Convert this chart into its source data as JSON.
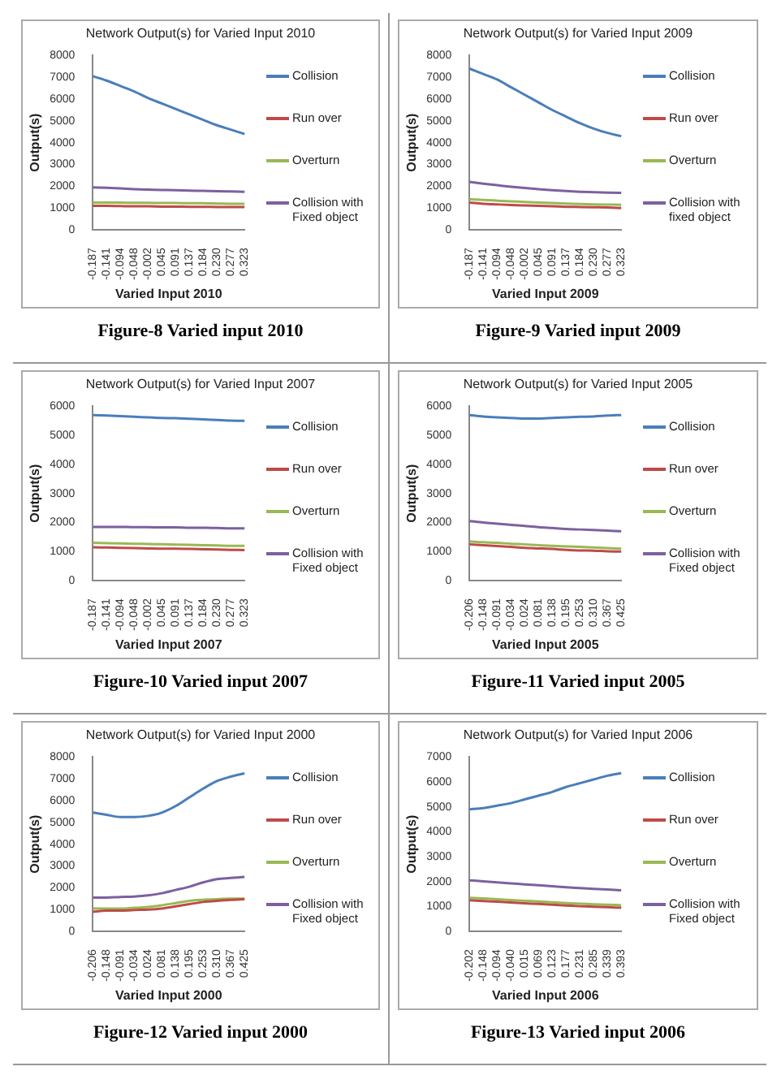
{
  "chart_data": [
    {
      "type": "line",
      "title": "Network Output(s) for Varied Input 2010",
      "xlabel": "Varied Input 2010",
      "ylabel": "Output(s)",
      "categories": [
        "-0.187",
        "-0.141",
        "-0.094",
        "-0.048",
        "-0.002",
        "0.045",
        "0.091",
        "0.137",
        "0.184",
        "0.230",
        "0.277",
        "0.323"
      ],
      "ylim": [
        0,
        8000
      ],
      "yticks": [
        0,
        1000,
        2000,
        3000,
        4000,
        5000,
        6000,
        7000,
        8000
      ],
      "legend": "right",
      "marker": "none",
      "annotations": [
        "Figure-8 Varied input 2010"
      ],
      "series": [
        {
          "name": "Collision",
          "color": "#4a7ebb",
          "values": [
            7050,
            6850,
            6600,
            6350,
            6050,
            5800,
            5550,
            5300,
            5050,
            4800,
            4600,
            4400
          ]
        },
        {
          "name": "Run over",
          "color": "#be4b48",
          "values": [
            1100,
            1100,
            1090,
            1080,
            1080,
            1070,
            1070,
            1060,
            1060,
            1050,
            1050,
            1050
          ]
        },
        {
          "name": "Overturn",
          "color": "#98b954",
          "values": [
            1250,
            1250,
            1250,
            1240,
            1240,
            1230,
            1230,
            1220,
            1220,
            1210,
            1200,
            1200
          ]
        },
        {
          "name": "Collision with Fixed object",
          "color": "#7d60a0",
          "values": [
            1950,
            1930,
            1900,
            1870,
            1850,
            1830,
            1820,
            1800,
            1790,
            1770,
            1760,
            1750
          ]
        }
      ]
    },
    {
      "type": "line",
      "title": "Network Output(s) for Varied Input 2009",
      "xlabel": "Varied Input 2009",
      "ylabel": "Output(s)",
      "categories": [
        "-0.187",
        "-0.141",
        "-0.094",
        "-0.048",
        "-0.002",
        "0.045",
        "0.091",
        "0.137",
        "0.184",
        "0.230",
        "0.277",
        "0.323"
      ],
      "ylim": [
        0,
        8000
      ],
      "yticks": [
        0,
        1000,
        2000,
        3000,
        4000,
        5000,
        6000,
        7000,
        8000
      ],
      "legend": "right",
      "marker": "none",
      "annotations": [
        "Figure-9 Varied input 2009"
      ],
      "series": [
        {
          "name": "Collision",
          "color": "#4a7ebb",
          "values": [
            7400,
            7150,
            6900,
            6550,
            6200,
            5850,
            5500,
            5200,
            4900,
            4650,
            4450,
            4300
          ]
        },
        {
          "name": "Run over",
          "color": "#be4b48",
          "values": [
            1250,
            1200,
            1170,
            1140,
            1120,
            1100,
            1080,
            1060,
            1050,
            1040,
            1030,
            1000
          ]
        },
        {
          "name": "Overturn",
          "color": "#98b954",
          "values": [
            1400,
            1370,
            1340,
            1310,
            1280,
            1250,
            1230,
            1210,
            1190,
            1170,
            1160,
            1150
          ]
        },
        {
          "name": "Collision with fixed object",
          "color": "#7d60a0",
          "values": [
            2200,
            2120,
            2050,
            1980,
            1920,
            1870,
            1820,
            1780,
            1750,
            1730,
            1710,
            1700
          ]
        }
      ]
    },
    {
      "type": "line",
      "title": "Network Output(s) for Varied Input 2007",
      "xlabel": "Varied Input 2007",
      "ylabel": "Output(s)",
      "categories": [
        "-0.187",
        "-0.141",
        "-0.094",
        "-0.048",
        "-0.002",
        "0.045",
        "0.091",
        "0.137",
        "0.184",
        "0.230",
        "0.277",
        "0.323"
      ],
      "ylim": [
        0,
        6000
      ],
      "yticks": [
        0,
        1000,
        2000,
        3000,
        4000,
        5000,
        6000
      ],
      "legend": "right",
      "marker": "none",
      "annotations": [
        "Figure-10 Varied input 2007"
      ],
      "series": [
        {
          "name": "Collision",
          "color": "#4a7ebb",
          "values": [
            5700,
            5680,
            5660,
            5640,
            5620,
            5600,
            5590,
            5570,
            5550,
            5530,
            5510,
            5500
          ]
        },
        {
          "name": "Run over",
          "color": "#be4b48",
          "values": [
            1150,
            1140,
            1130,
            1120,
            1110,
            1100,
            1100,
            1090,
            1080,
            1070,
            1060,
            1050
          ]
        },
        {
          "name": "Overturn",
          "color": "#98b954",
          "values": [
            1300,
            1290,
            1280,
            1270,
            1260,
            1250,
            1240,
            1230,
            1220,
            1210,
            1200,
            1200
          ]
        },
        {
          "name": "Collision with Fixed object",
          "color": "#7d60a0",
          "values": [
            1850,
            1850,
            1850,
            1840,
            1840,
            1830,
            1830,
            1820,
            1820,
            1810,
            1800,
            1800
          ]
        }
      ]
    },
    {
      "type": "line",
      "title": "Network Output(s) for Varied Input 2005",
      "xlabel": "Varied Input 2005",
      "ylabel": "Output(s)",
      "categories": [
        "-0.206",
        "-0.148",
        "-0.091",
        "-0.034",
        "0.024",
        "0.081",
        "0.138",
        "0.195",
        "0.253",
        "0.310",
        "0.367",
        "0.425"
      ],
      "ylim": [
        0,
        6000
      ],
      "yticks": [
        0,
        1000,
        2000,
        3000,
        4000,
        5000,
        6000
      ],
      "legend": "right",
      "marker": "none",
      "annotations": [
        "Figure-11 Varied input 2005"
      ],
      "series": [
        {
          "name": "Collision",
          "color": "#4a7ebb",
          "values": [
            5700,
            5650,
            5620,
            5600,
            5580,
            5580,
            5600,
            5620,
            5640,
            5650,
            5680,
            5700
          ]
        },
        {
          "name": "Run over",
          "color": "#be4b48",
          "values": [
            1250,
            1220,
            1190,
            1160,
            1130,
            1110,
            1090,
            1060,
            1040,
            1030,
            1010,
            1000
          ]
        },
        {
          "name": "Overturn",
          "color": "#98b954",
          "values": [
            1350,
            1320,
            1300,
            1270,
            1250,
            1220,
            1200,
            1180,
            1160,
            1140,
            1120,
            1100
          ]
        },
        {
          "name": "Collision with Fixed object",
          "color": "#7d60a0",
          "values": [
            2050,
            2000,
            1960,
            1920,
            1880,
            1840,
            1810,
            1780,
            1760,
            1740,
            1720,
            1700
          ]
        }
      ]
    },
    {
      "type": "line",
      "title": "Network Output(s) for Varied Input 2000",
      "xlabel": "Varied Input 2000",
      "ylabel": "Output(s)",
      "categories": [
        "-0.206",
        "-0.148",
        "-0.091",
        "-0.034",
        "0.024",
        "0.081",
        "0.138",
        "0.195",
        "0.253",
        "0.310",
        "0.367",
        "0.425"
      ],
      "ylim": [
        0,
        8000
      ],
      "yticks": [
        0,
        1000,
        2000,
        3000,
        4000,
        5000,
        6000,
        7000,
        8000
      ],
      "legend": "right",
      "marker": "none",
      "annotations": [
        "Figure-12 Varied input 2000"
      ],
      "series": [
        {
          "name": "Collision",
          "color": "#4a7ebb",
          "values": [
            5450,
            5350,
            5250,
            5250,
            5300,
            5450,
            5750,
            6150,
            6550,
            6900,
            7100,
            7250
          ]
        },
        {
          "name": "Run over",
          "color": "#be4b48",
          "values": [
            900,
            950,
            950,
            980,
            1000,
            1050,
            1150,
            1250,
            1350,
            1400,
            1450,
            1480
          ]
        },
        {
          "name": "Overturn",
          "color": "#98b954",
          "values": [
            1050,
            1050,
            1050,
            1080,
            1120,
            1200,
            1300,
            1400,
            1450,
            1480,
            1500,
            1500
          ]
        },
        {
          "name": "Collision with Fixed object",
          "color": "#7d60a0",
          "values": [
            1550,
            1550,
            1580,
            1600,
            1650,
            1750,
            1900,
            2050,
            2250,
            2400,
            2450,
            2500
          ]
        }
      ]
    },
    {
      "type": "line",
      "title": "Network Output(s) for Varied Input 2006",
      "xlabel": "Varied Input 2006",
      "ylabel": "Output(s)",
      "categories": [
        "-0.202",
        "-0.148",
        "-0.094",
        "-0.040",
        "0.015",
        "0.069",
        "0.123",
        "0.177",
        "0.231",
        "0.285",
        "0.339",
        "0.393"
      ],
      "ylim": [
        0,
        7000
      ],
      "yticks": [
        0,
        1000,
        2000,
        3000,
        4000,
        5000,
        6000,
        7000
      ],
      "legend": "right",
      "marker": "none",
      "annotations": [
        "Figure-13 Varied input 2006"
      ],
      "series": [
        {
          "name": "Collision",
          "color": "#4a7ebb",
          "values": [
            4900,
            4950,
            5050,
            5150,
            5300,
            5450,
            5600,
            5800,
            5950,
            6100,
            6250,
            6350
          ]
        },
        {
          "name": "Run over",
          "color": "#be4b48",
          "values": [
            1250,
            1220,
            1190,
            1160,
            1130,
            1100,
            1070,
            1040,
            1010,
            990,
            970,
            950
          ]
        },
        {
          "name": "Overturn",
          "color": "#98b954",
          "values": [
            1350,
            1320,
            1290,
            1260,
            1230,
            1200,
            1170,
            1140,
            1110,
            1090,
            1070,
            1050
          ]
        },
        {
          "name": "Collision with Fixed object",
          "color": "#7d60a0",
          "values": [
            2050,
            2010,
            1970,
            1930,
            1890,
            1850,
            1810,
            1770,
            1740,
            1710,
            1680,
            1650
          ]
        }
      ]
    }
  ]
}
